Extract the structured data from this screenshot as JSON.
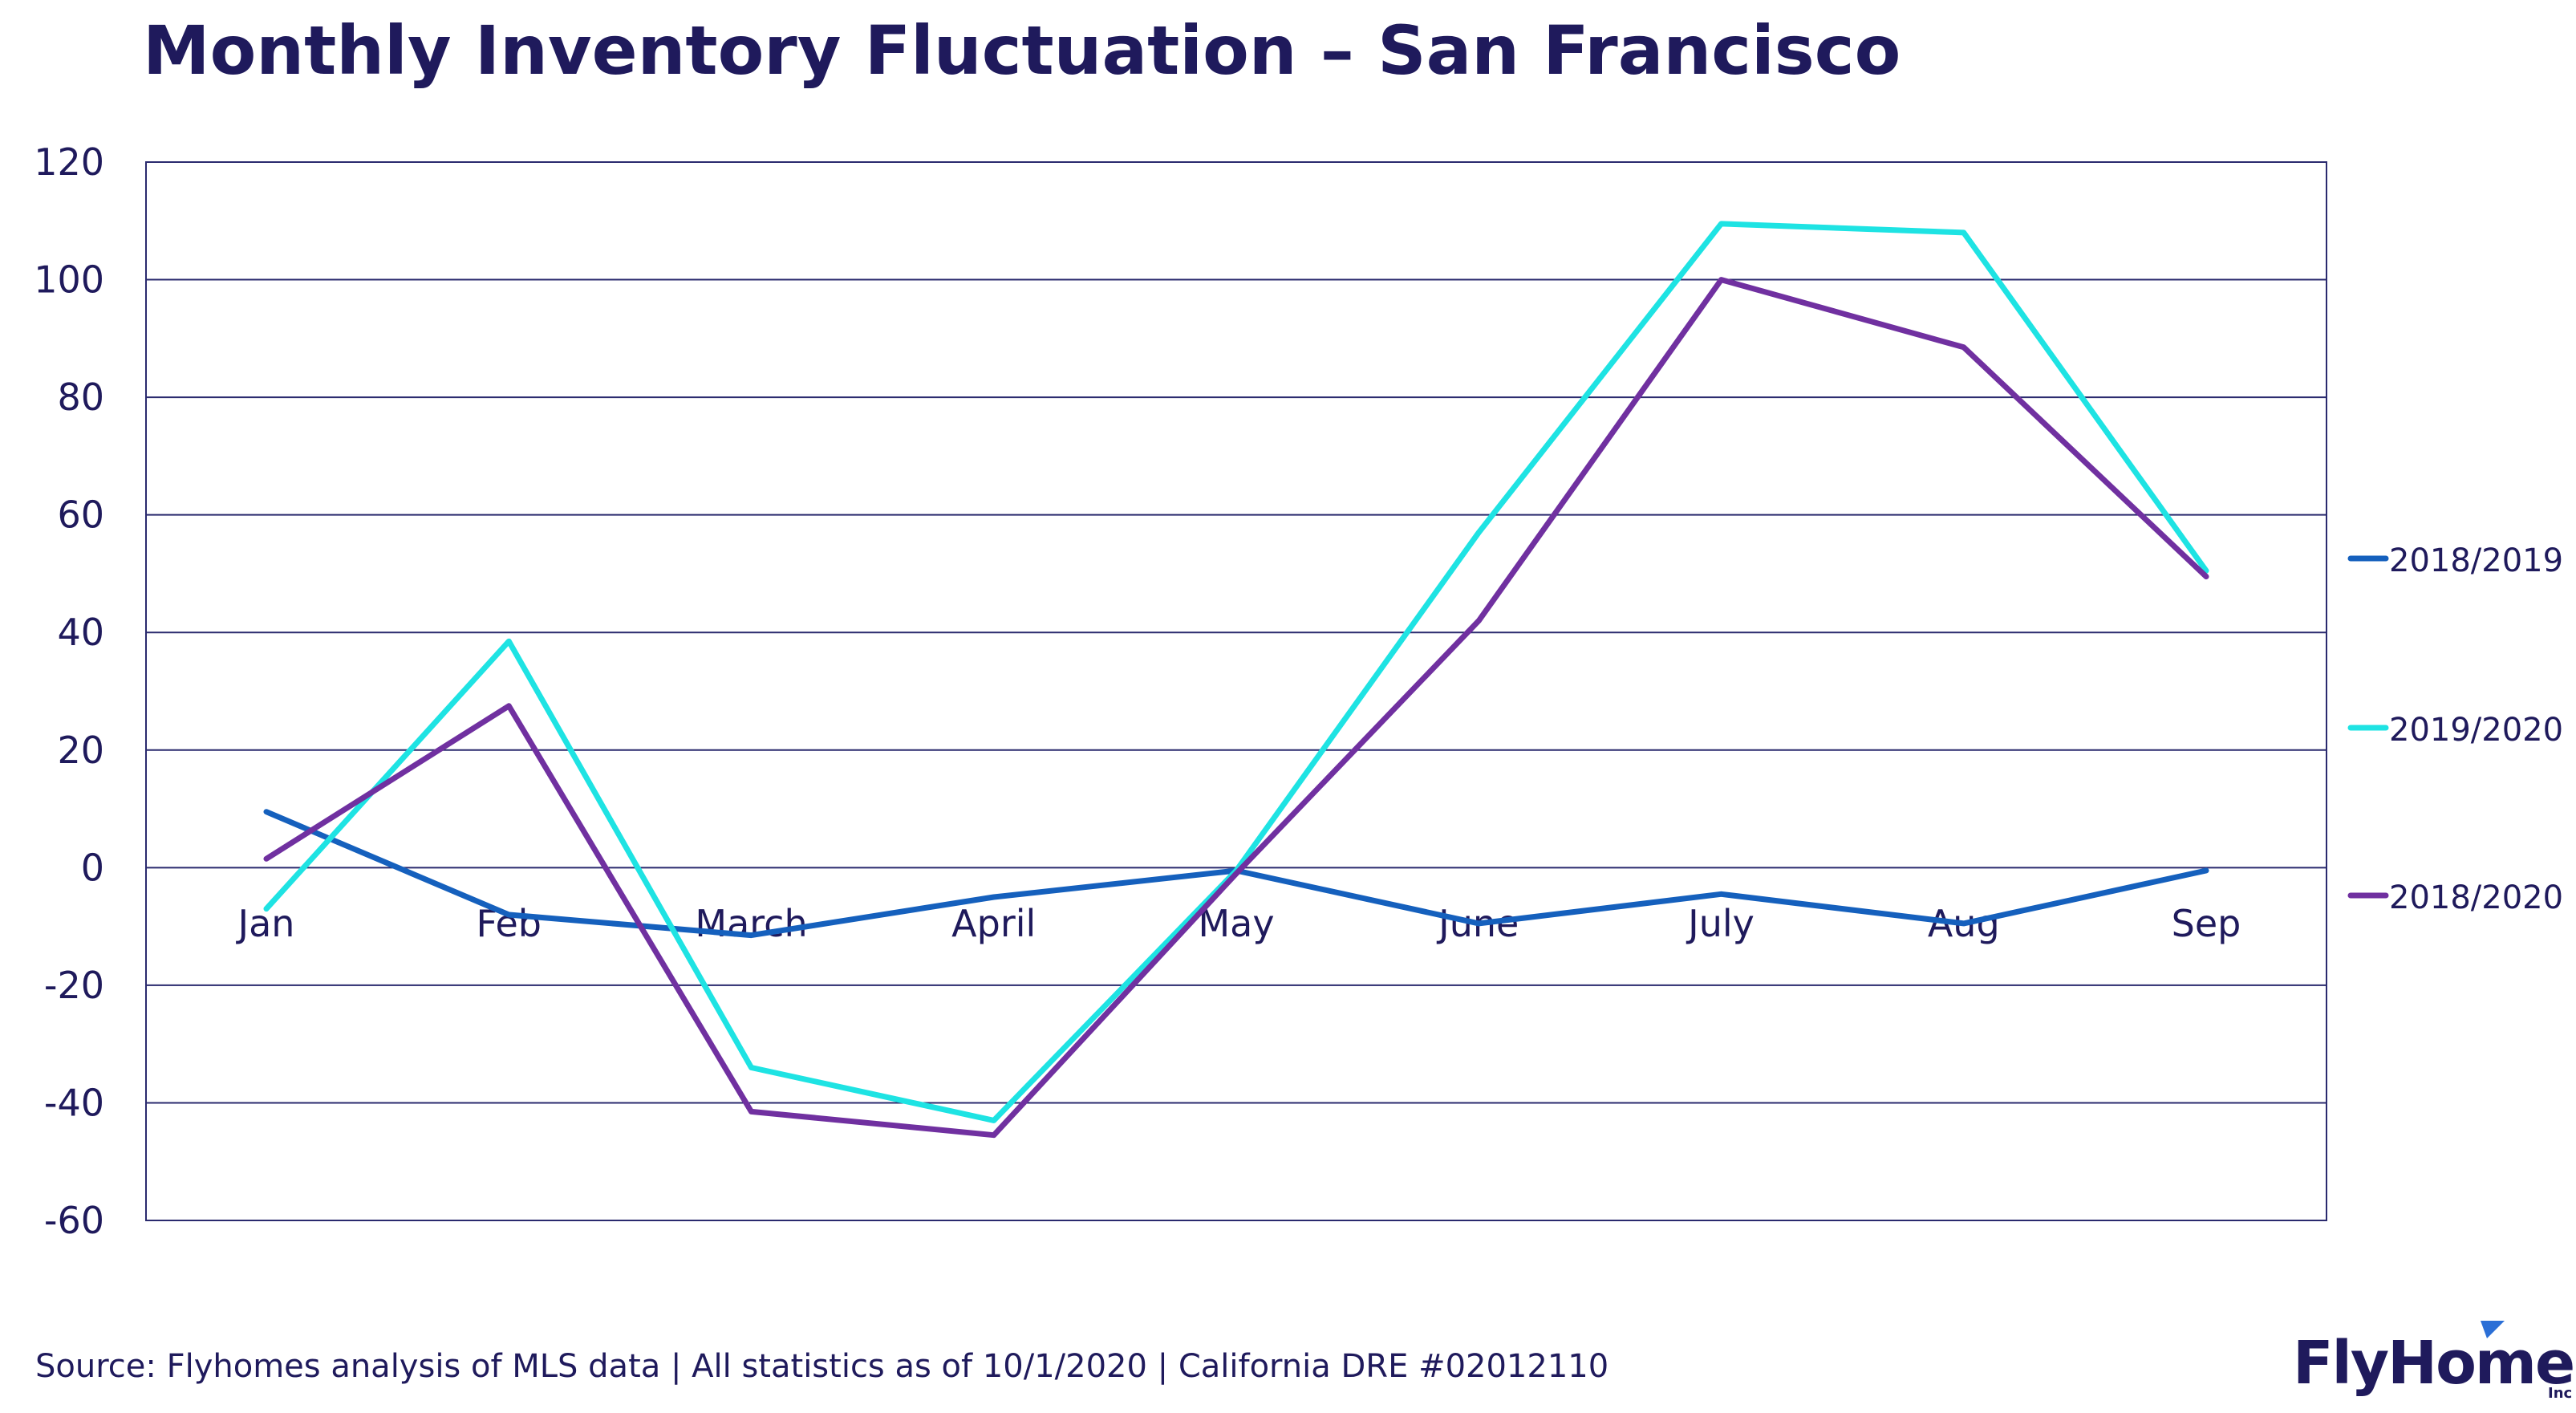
{
  "chart_data": {
    "type": "line",
    "title": "Monthly Inventory Fluctuation – San Francisco",
    "categories": [
      "Jan",
      "Feb",
      "March",
      "April",
      "May",
      "June",
      "July",
      "Aug",
      "Sep"
    ],
    "series": [
      {
        "name": "2018/2019",
        "color": "#1560bd",
        "values": [
          9.5,
          -8,
          -11.5,
          -5,
          -0.5,
          -9.5,
          -4.5,
          -9.5,
          -0.5
        ]
      },
      {
        "name": "2019/2020",
        "color": "#1ee3e3",
        "values": [
          -7,
          38.5,
          -34,
          -43,
          -0.5,
          57,
          109.5,
          108,
          50.5
        ]
      },
      {
        "name": "2018/2020",
        "color": "#7030a0",
        "values": [
          1.5,
          27.5,
          -41.5,
          -45.5,
          -1,
          42,
          100,
          88.5,
          49.5
        ]
      }
    ],
    "yticks": [
      "120",
      "100",
      "80",
      "60",
      "40",
      "20",
      "0",
      "-20",
      "-40",
      "-60"
    ],
    "ylim": [
      -60,
      120
    ],
    "grid": true,
    "legend_position": "right"
  },
  "footer": {
    "source": "Source: Flyhomes analysis of MLS data | All statistics as of 10/1/2020 | California DRE #02012110"
  },
  "brand": {
    "wordmark": "FlyHomes",
    "suffix": "Inc",
    "color": "#1f1a5c",
    "accent": "#2b6fd6"
  }
}
